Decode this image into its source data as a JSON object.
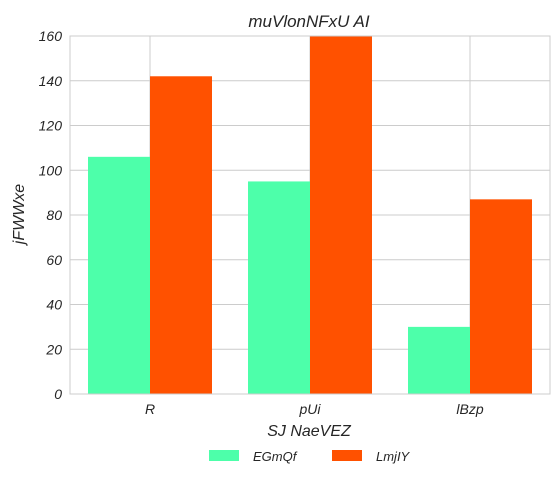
{
  "chart_data": {
    "type": "bar",
    "title": "muVlonNFxU AI",
    "xlabel": "SJ NaeVEZ",
    "ylabel": "jFWWxe",
    "categories": [
      "R",
      "pUi",
      "lBzp"
    ],
    "series": [
      {
        "name": "EGmQf",
        "color": "#4dffaa",
        "values": [
          106,
          95,
          30
        ]
      },
      {
        "name": "LmjIY",
        "color": "#ff5100",
        "values": [
          142,
          160,
          87
        ]
      }
    ],
    "ylim": [
      0,
      160
    ],
    "yticks": [
      0,
      20,
      40,
      60,
      80,
      100,
      120,
      140,
      160
    ],
    "grid": true,
    "legend_position": "bottom-center"
  }
}
